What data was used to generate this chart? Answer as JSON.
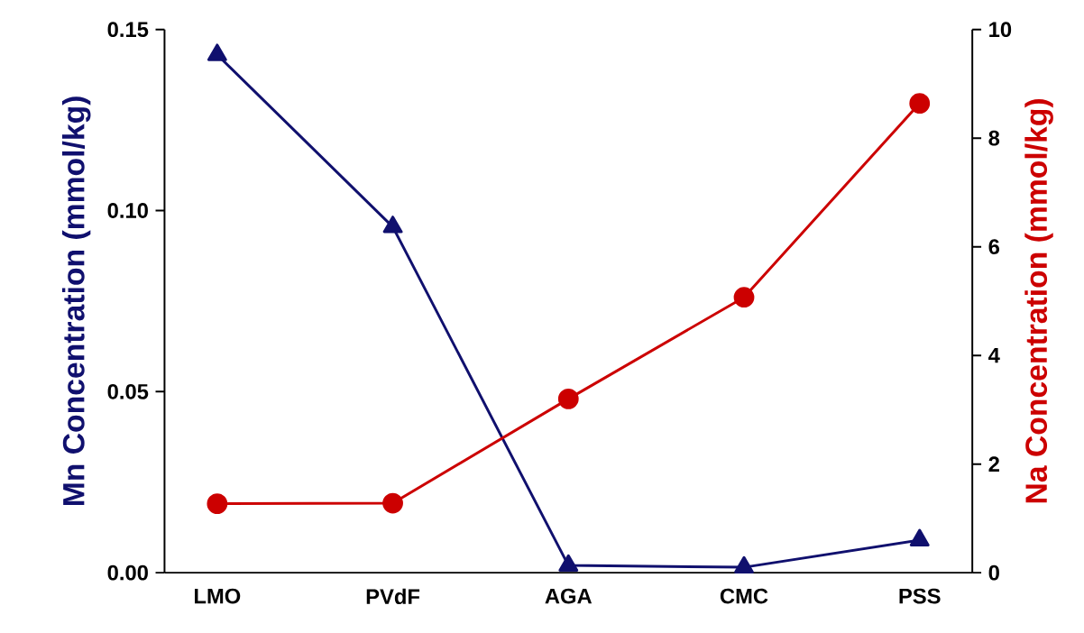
{
  "chart_data": {
    "type": "line",
    "ylabel": "Mn Concentration (mmol/kg)",
    "y2label": "Na Concentration (mmol/kg)",
    "categories": [
      "LMO",
      "PVdF",
      "AGA",
      "CMC",
      "PSS"
    ],
    "series": [
      {
        "name": null,
        "axis": "y",
        "marker": "triangle",
        "color": "#10106e",
        "values": [
          0.143,
          0.0955,
          0.002,
          0.0015,
          0.009
        ]
      },
      {
        "name": null,
        "axis": "y2",
        "marker": "circle",
        "color": "#cc0000",
        "values": [
          1.27,
          1.28,
          3.2,
          5.07,
          8.64
        ]
      }
    ],
    "ylim": [
      0,
      0.15
    ],
    "yticks": [
      {
        "value": 0,
        "label": "0.00"
      },
      {
        "value": 0.05,
        "label": "0.05"
      },
      {
        "value": 0.1,
        "label": "0.10"
      },
      {
        "value": 0.15,
        "label": "0.15"
      }
    ],
    "y2lim": [
      0,
      10
    ],
    "y2ticks": [
      0,
      2,
      4,
      6,
      8,
      10
    ],
    "grid": false,
    "legend": false
  }
}
